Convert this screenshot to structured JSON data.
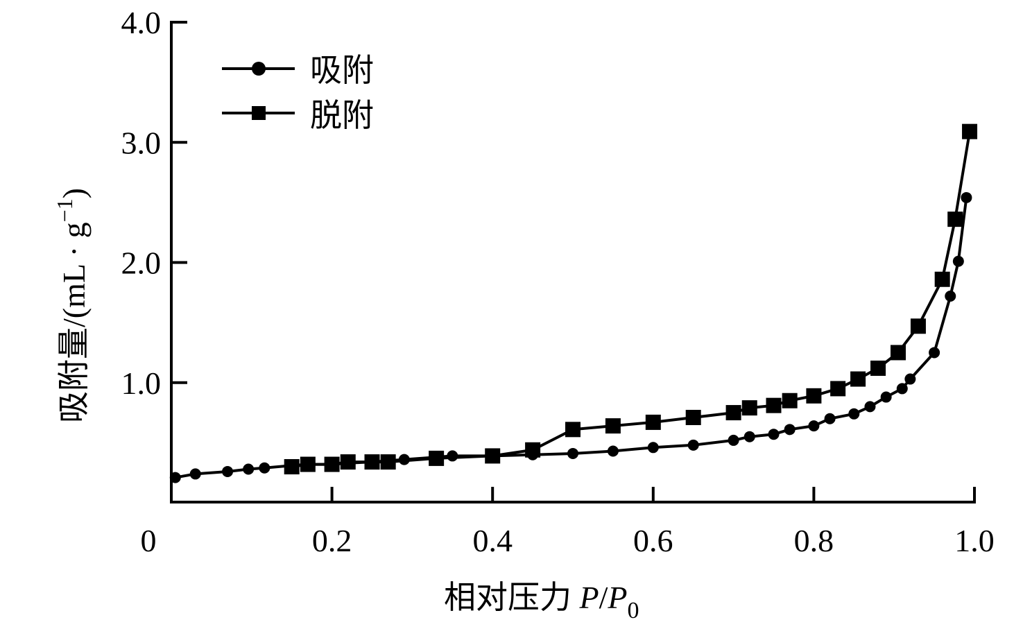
{
  "chart_data": {
    "type": "line",
    "title": "",
    "xlabel": "相对压力 P/P0",
    "xlabel_parts": {
      "prefix": "相对压力 ",
      "p": "P",
      "slash": "/",
      "p0": "P",
      "sub": "0"
    },
    "ylabel": "吸附量/(mL · g⁻¹)",
    "ylabel_parts": {
      "main": "吸附量/(mL · g",
      "sup": "−1",
      "close": ")"
    },
    "xlim": [
      0,
      1.0
    ],
    "ylim": [
      0,
      4.0
    ],
    "x_ticks": [
      0,
      0.2,
      0.4,
      0.6,
      0.8,
      1.0
    ],
    "x_tick_labels": [
      "0",
      "0.2",
      "0.4",
      "0.6",
      "0.8",
      "1.0"
    ],
    "y_ticks": [
      1.0,
      2.0,
      3.0,
      4.0
    ],
    "y_tick_labels": [
      "1.0",
      "2.0",
      "3.0",
      "4.0"
    ],
    "grid": false,
    "legend_position": "upper left",
    "series": [
      {
        "name": "吸附",
        "marker": "circle",
        "color": "#000000",
        "x": [
          0.005,
          0.03,
          0.07,
          0.096,
          0.116,
          0.15,
          0.17,
          0.2,
          0.22,
          0.25,
          0.27,
          0.29,
          0.33,
          0.35,
          0.4,
          0.45,
          0.5,
          0.55,
          0.6,
          0.65,
          0.7,
          0.72,
          0.75,
          0.77,
          0.8,
          0.82,
          0.85,
          0.87,
          0.89,
          0.91,
          0.92,
          0.95,
          0.97,
          0.98,
          0.99
        ],
        "y": [
          0.21,
          0.24,
          0.26,
          0.28,
          0.29,
          0.31,
          0.32,
          0.32,
          0.33,
          0.34,
          0.35,
          0.36,
          0.38,
          0.39,
          0.39,
          0.4,
          0.41,
          0.43,
          0.46,
          0.48,
          0.52,
          0.55,
          0.57,
          0.61,
          0.64,
          0.7,
          0.74,
          0.8,
          0.88,
          0.95,
          1.03,
          1.25,
          1.72,
          2.01,
          2.54
        ]
      },
      {
        "name": "脱附",
        "marker": "square",
        "color": "#000000",
        "x": [
          0.994,
          0.976,
          0.96,
          0.93,
          0.905,
          0.88,
          0.855,
          0.83,
          0.8,
          0.77,
          0.75,
          0.72,
          0.7,
          0.65,
          0.6,
          0.55,
          0.5,
          0.45,
          0.4,
          0.33,
          0.27,
          0.25,
          0.22,
          0.2,
          0.17,
          0.15
        ],
        "y": [
          3.09,
          2.36,
          1.86,
          1.47,
          1.25,
          1.12,
          1.03,
          0.95,
          0.89,
          0.85,
          0.81,
          0.79,
          0.75,
          0.71,
          0.67,
          0.64,
          0.61,
          0.44,
          0.39,
          0.37,
          0.34,
          0.34,
          0.34,
          0.32,
          0.32,
          0.3
        ]
      }
    ]
  },
  "legend": {
    "items": [
      {
        "label": "吸附",
        "marker": "circle"
      },
      {
        "label": "脱附",
        "marker": "square"
      }
    ]
  }
}
